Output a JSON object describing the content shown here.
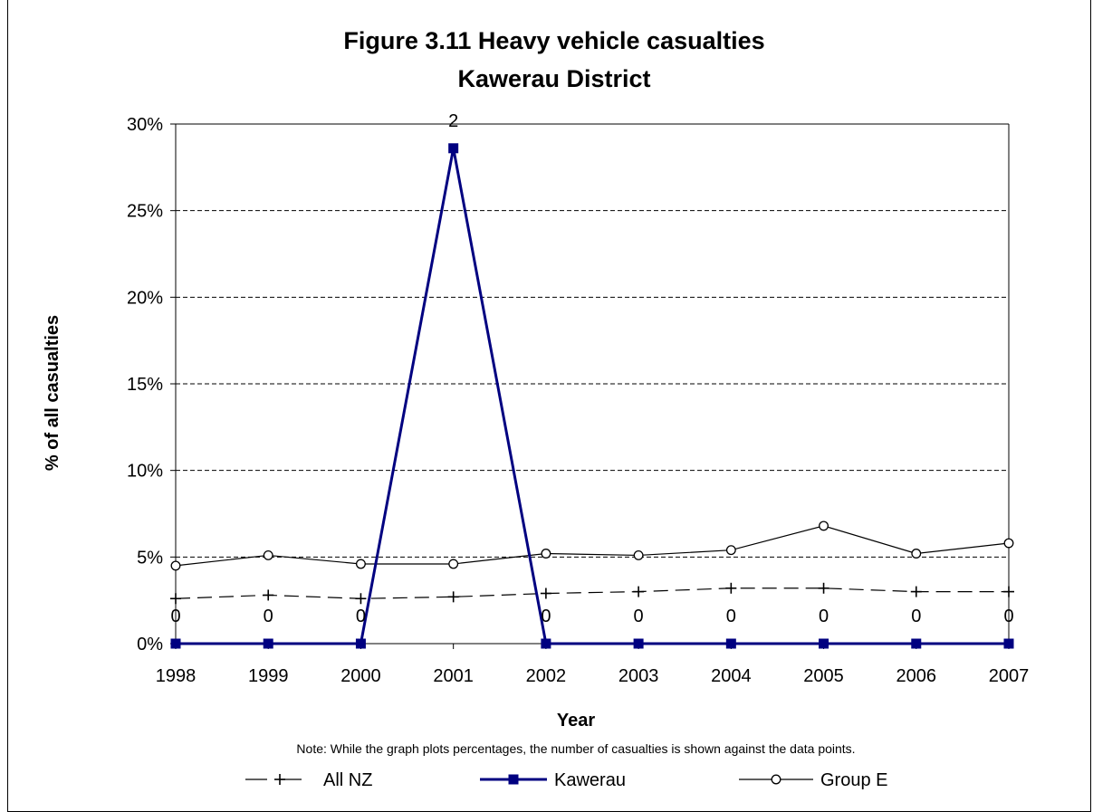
{
  "chart_data": {
    "type": "line",
    "title_lines": [
      "Figure 3.11 Heavy vehicle casualties",
      "Kawerau District"
    ],
    "xlabel": "Year",
    "ylabel": "% of all casualties",
    "note": "Note: While the graph plots percentages, the number of casualties is shown against the data points.",
    "x": [
      "1998",
      "1999",
      "2000",
      "2001",
      "2002",
      "2003",
      "2004",
      "2005",
      "2006",
      "2007"
    ],
    "ylim": [
      0,
      30
    ],
    "yticks": [
      "0%",
      "5%",
      "10%",
      "15%",
      "20%",
      "25%",
      "30%"
    ],
    "grid": "horizontal dashed",
    "legend_position": "bottom",
    "series": [
      {
        "name": "All NZ",
        "color": "#000000",
        "marker": "plus",
        "line": "dash",
        "values": [
          2.6,
          2.8,
          2.6,
          2.7,
          2.9,
          3.0,
          3.2,
          3.2,
          3.0,
          3.0
        ]
      },
      {
        "name": "Kawerau",
        "color": "#000080",
        "marker": "square",
        "line": "solid",
        "values": [
          0,
          0,
          0,
          28.6,
          0,
          0,
          0,
          0,
          0,
          0
        ],
        "counts": [
          "0",
          "0",
          "0",
          "2",
          "0",
          "0",
          "0",
          "0",
          "0",
          "0"
        ]
      },
      {
        "name": "Group E",
        "color": "#000000",
        "marker": "circle",
        "line": "solid",
        "values": [
          4.5,
          5.1,
          4.6,
          4.6,
          5.2,
          5.1,
          5.4,
          6.8,
          5.2,
          5.8
        ]
      }
    ]
  }
}
